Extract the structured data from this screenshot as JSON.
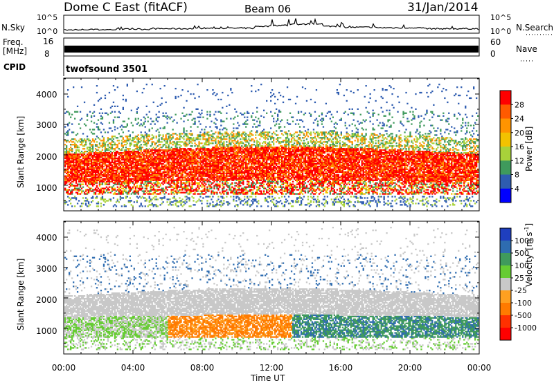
{
  "chart_data": [
    {
      "type": "line",
      "panel": "noise",
      "series": [
        {
          "name": "N.Sky",
          "values": [
            2,
            3,
            3,
            4,
            4,
            5,
            5,
            5,
            6,
            6,
            6,
            10,
            12,
            14,
            15,
            10,
            8,
            8,
            7,
            7,
            6,
            5,
            5,
            5,
            4
          ]
        },
        {
          "name": "N.Search",
          "values": []
        }
      ],
      "yticks": [
        "10^5",
        "10^0"
      ],
      "ylabel": "N.Sky",
      "right_label": "N.Search",
      "right_yticks": [
        "10^5",
        "10^0"
      ]
    },
    {
      "type": "line",
      "panel": "frequency",
      "series": [
        {
          "name": "Freq. [MHz]",
          "values": [
            10.5,
            10.5,
            10.5,
            10.5,
            10.5,
            10.5,
            10.5,
            10.5,
            10.5,
            10.5,
            10.5,
            10.5,
            10.5,
            10.5,
            10.5,
            10.5,
            10.5,
            10.5,
            10.5,
            10.5,
            10.5,
            10.5,
            10.5,
            10.5,
            10.5
          ]
        },
        {
          "name": "Nave",
          "values": []
        }
      ],
      "ylabel": "Freq.",
      "ylabel_unit": "[MHz]",
      "yticks": [
        "16",
        "8"
      ],
      "right_label": "Nave",
      "right_yticks": [
        "60",
        "0"
      ]
    },
    {
      "type": "heatmap",
      "panel": "power",
      "ylabel": "Slant Range [km]",
      "xlabel": "",
      "ylim": [
        180,
        4500
      ],
      "yticks": [
        "1000",
        "2000",
        "3000",
        "4000"
      ],
      "colorbar": {
        "label": "Power [dB]",
        "ticks": [
          "28",
          "24",
          "20",
          "16",
          "12",
          "8",
          "4"
        ],
        "colors": [
          "#ff0000",
          "#ff5a00",
          "#ff9400",
          "#f2c200",
          "#a8d23a",
          "#3f9a5c",
          "#2e5cb0",
          "#0000ff"
        ]
      },
      "bands": [
        {
          "range_km": [
            1000,
            2050
          ],
          "value_dB": 26
        },
        {
          "range_km": [
            600,
            1000
          ],
          "value_dB": 18
        },
        {
          "range_km": [
            2050,
            2500
          ],
          "value_dB": 14
        },
        {
          "range_km": [
            2500,
            3400
          ],
          "value_dB": 8
        }
      ]
    },
    {
      "type": "heatmap",
      "panel": "velocity",
      "ylabel": "Slant Range [km]",
      "xlabel": "Time UT",
      "ylim": [
        180,
        4500
      ],
      "yticks": [
        "1000",
        "2000",
        "3000",
        "4000"
      ],
      "xticks": [
        "00:00",
        "04:00",
        "08:00",
        "12:00",
        "16:00",
        "20:00",
        "00:00"
      ],
      "colorbar": {
        "label": "Velocity",
        "unit": "[m s",
        "unit_exp": "-1",
        "unit_close": "]",
        "ticks": [
          "1000",
          "500",
          "100",
          "25",
          "-25",
          "-100",
          "-500",
          "-1000"
        ],
        "colors": [
          "#1f3fbf",
          "#2e6cb0",
          "#3f9a5c",
          "#66cc33",
          "#c8c8c8",
          "#ffa020",
          "#ff7a00",
          "#ff3000",
          "#ff0000"
        ]
      },
      "bands": [
        {
          "range_km": [
            1300,
            2100
          ],
          "value_ms": 0
        },
        {
          "range_km": [
            700,
            1300
          ],
          "value_ms": -300
        },
        {
          "range_km": [
            700,
            1300
          ],
          "value_ms": 300
        }
      ]
    }
  ],
  "header": {
    "title": "Dome C East (fitACF)",
    "beam": "Beam 06",
    "date": "31/Jan/2014"
  },
  "cpid": {
    "label": "CPID",
    "value": "twofsound 3501"
  }
}
